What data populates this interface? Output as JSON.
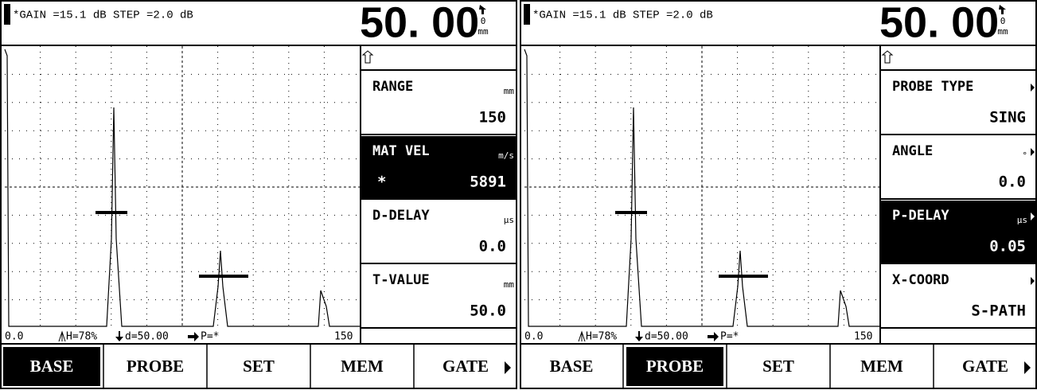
{
  "panels": [
    {
      "header": {
        "gain": "*GAIN =15.1 dB STEP =2.0 dB",
        "reading": "50. 00",
        "icon_digit": "0",
        "unit": "mm"
      },
      "menu": [
        {
          "label": "RANGE",
          "unit": "mm",
          "value": "150",
          "selected": false,
          "arrow": false
        },
        {
          "label": "MAT VEL",
          "unit": "m/s",
          "marker": "*",
          "value": "5891",
          "selected": true,
          "arrow": false
        },
        {
          "label": "D-DELAY",
          "unit": "µs",
          "value": "0.0",
          "selected": false,
          "arrow": false
        },
        {
          "label": "T-VALUE",
          "unit": "mm",
          "value": "50.0",
          "selected": false,
          "arrow": false
        }
      ],
      "status": {
        "start": "0.0",
        "height": "H=78%",
        "depth": "d=50.00",
        "p": "P=*",
        "end": "150"
      },
      "tabs": [
        "BASE",
        "PROBE",
        "SET",
        "MEM",
        "GATE"
      ],
      "active_tab": 0
    },
    {
      "header": {
        "gain": "*GAIN =15.1 dB STEP =2.0 dB",
        "reading": "50. 00",
        "icon_digit": "0",
        "unit": "mm"
      },
      "menu": [
        {
          "label": "PROBE TYPE",
          "value": "SING",
          "selected": false,
          "arrow": true
        },
        {
          "label": "ANGLE",
          "unit": "°",
          "value": "0.0",
          "selected": false,
          "arrow": true
        },
        {
          "label": "P-DELAY",
          "unit": "µs",
          "value": "0.05",
          "selected": true,
          "arrow": true
        },
        {
          "label": "X-COORD",
          "value": "S-PATH",
          "selected": false,
          "arrow": true
        }
      ],
      "status": {
        "start": "0.0",
        "height": "H=78%",
        "depth": "d=50.00",
        "p": "P=*",
        "end": "150"
      },
      "tabs": [
        "BASE",
        "PROBE",
        "SET",
        "MEM",
        "GATE"
      ],
      "active_tab": 1
    }
  ]
}
